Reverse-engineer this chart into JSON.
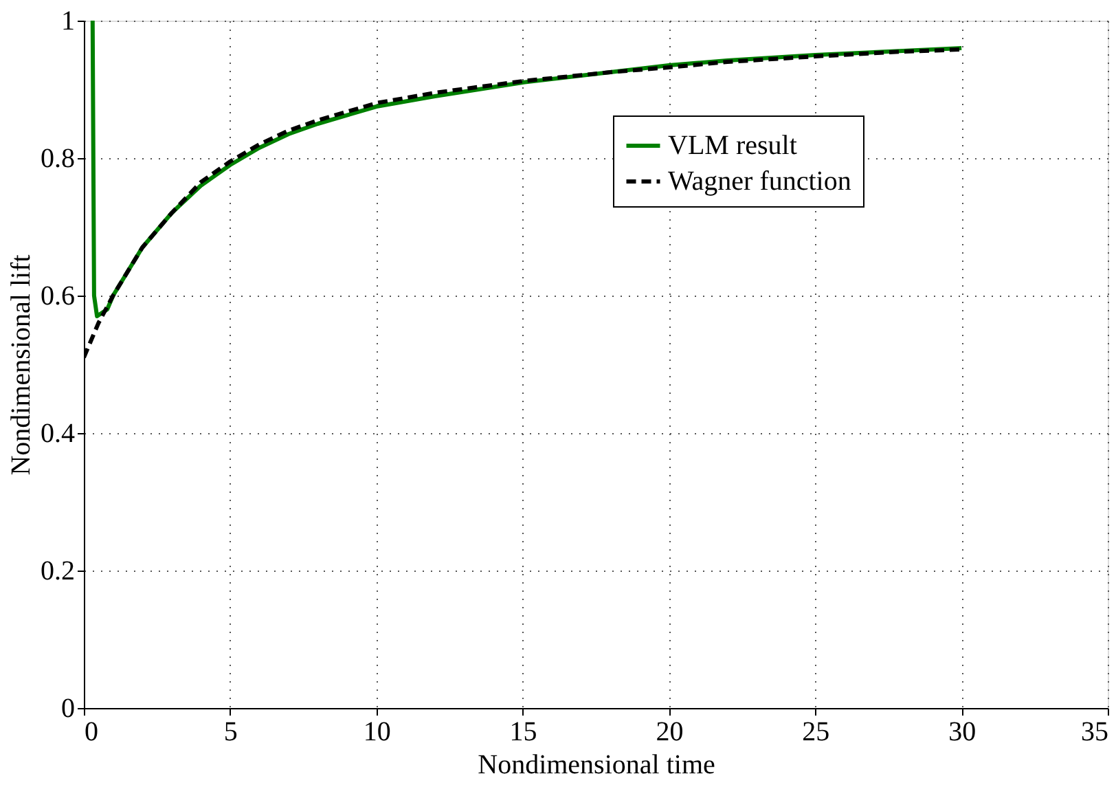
{
  "chart_data": {
    "type": "line",
    "xlabel": "Nondimensional time",
    "ylabel": "Nondimensional lift",
    "xlim": [
      0,
      35
    ],
    "xticks": [
      0,
      5,
      10,
      15,
      20,
      25,
      30,
      35
    ],
    "ylim": [
      0,
      1
    ],
    "yticks": [
      0,
      0.2,
      0.4,
      0.6,
      0.8,
      1
    ],
    "grid": true,
    "legend": "top right",
    "marker": "none",
    "series": [
      {
        "name": "VLM result",
        "color": "#008000",
        "line_style": "solid",
        "x": [
          0.3,
          0.35,
          0.45,
          0.8,
          1,
          1.5,
          2,
          3,
          4,
          5,
          6,
          7,
          8,
          10,
          12,
          15,
          18,
          20,
          22,
          25,
          28,
          30
        ],
        "values": [
          1.0,
          0.6,
          0.57,
          0.58,
          0.6,
          0.635,
          0.67,
          0.72,
          0.76,
          0.79,
          0.815,
          0.835,
          0.85,
          0.875,
          0.89,
          0.91,
          0.925,
          0.935,
          0.942,
          0.95,
          0.956,
          0.96
        ]
      },
      {
        "name": "Wagner function",
        "color": "#000000",
        "line_style": "dashed",
        "x": [
          0,
          0.5,
          1,
          2,
          3,
          4,
          5,
          6,
          7,
          8,
          10,
          12,
          15,
          18,
          20,
          22,
          25,
          28,
          30
        ],
        "values": [
          0.51,
          0.56,
          0.6,
          0.67,
          0.72,
          0.765,
          0.795,
          0.82,
          0.84,
          0.855,
          0.88,
          0.895,
          0.912,
          0.925,
          0.932,
          0.94,
          0.948,
          0.955,
          0.958
        ]
      }
    ]
  }
}
